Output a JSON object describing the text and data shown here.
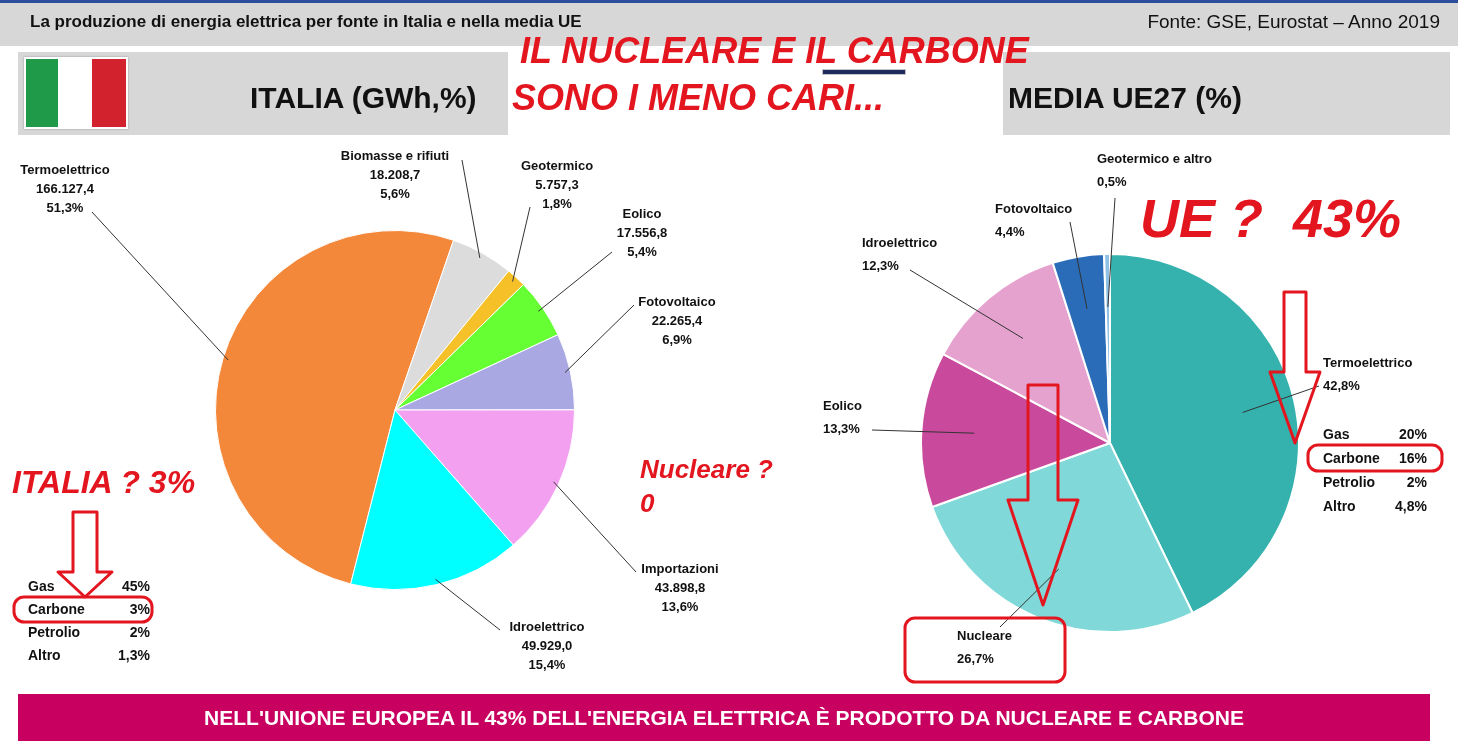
{
  "chart_data": [
    {
      "type": "pie",
      "title": "ITALIA (GWh,%)",
      "categories": [
        "Termoelettrico",
        "Biomasse e rifiuti",
        "Geotermico",
        "Eolico",
        "Fotovoltaico",
        "Importazioni",
        "Idroelettrico"
      ],
      "values": [
        166127.4,
        18208.7,
        5757.3,
        17556.8,
        22265.4,
        43898.8,
        49929.0
      ],
      "colors": [
        "#f4883a",
        "#dcdcdc",
        "#f5c028",
        "#66ff33",
        "#a9a8e2",
        "#f4a0f0",
        "#00ffff"
      ],
      "value_labels": [
        "166.127,4\n51,3%",
        "18.208,7\n5,6%",
        "5.757,3\n1,8%",
        "17.556,8\n5,4%",
        "22.265,4\n6,9%",
        "43.898,8\n13,6%",
        "49.929,0\n15,4%"
      ],
      "annotations": [
        "La produzione di energia elettrica per fonte in Italia e nella media UE",
        "Fonte: GSE, Eurostat – Anno 2019",
        "IL NUCLEARE E IL CARBONE",
        "SONO I MENO CARI...",
        "ITALIA ? 3%",
        "Gas 45%",
        "Carbone 3%",
        "Petrolio 2%",
        "Altro 1,3%",
        "Nucleare ? 0"
      ]
    },
    {
      "type": "pie",
      "title": "MEDIA UE27 (%)",
      "categories": [
        "Termoelettrico",
        "Nucleare",
        "Eolico",
        "Idroelettrico",
        "Fotovoltaico",
        "Geotermico e altro"
      ],
      "values": [
        42.8,
        26.7,
        13.3,
        12.3,
        4.4,
        0.5
      ],
      "colors": [
        "#35b2ad",
        "#80d8d8",
        "#c94a9c",
        "#e6a2cf",
        "#2a6cb8",
        "#8fc0e6"
      ],
      "value_labels": [
        "42,8%",
        "26,7%",
        "13,3%",
        "12,3%",
        "4,4%",
        "0,5%"
      ],
      "annotations": [
        "UE ?  43%",
        "Gas 20%",
        "Carbone 16%",
        "Petrolio 2%",
        "Altro 4,8%",
        "NELL'UNIONE EUROPEA IL 43% DELL'ENERGIA ELETTRICA È PRODOTTO DA NUCLEARE E CARBONE"
      ]
    }
  ]
}
